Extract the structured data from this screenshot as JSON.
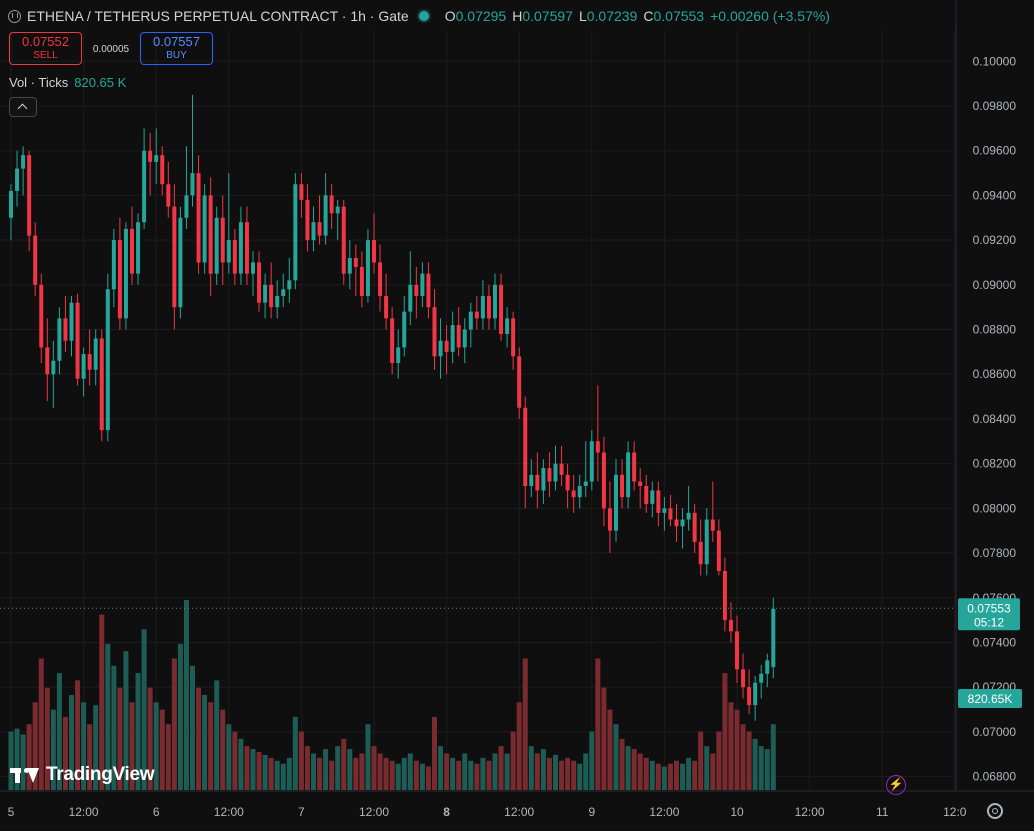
{
  "header": {
    "symbol": "ETHENA / TETHERUS PERPETUAL CONTRACT · 1h · Gate",
    "o_label": "O",
    "o_value": "0.07295",
    "h_label": "H",
    "h_value": "0.07597",
    "l_label": "L",
    "l_value": "0.07239",
    "c_label": "C",
    "c_value": "0.07553",
    "change": "+0.00260 (+3.57%)"
  },
  "trade": {
    "sell_price": "0.07552",
    "sell_label": "SELL",
    "spread": "0.00005",
    "buy_price": "0.07557",
    "buy_label": "BUY"
  },
  "volume": {
    "label": "Vol · Ticks",
    "value": "820.65 K"
  },
  "branding": {
    "name": "TradingView"
  },
  "colors": {
    "up": "#26a69a",
    "down": "#f23645",
    "up_vol": "#1e5c56",
    "down_vol": "#7a2b30",
    "bg": "#0f0f0f"
  },
  "icons": [
    "symbol-logo-icon",
    "collapse-chevron-icon",
    "lightning-icon",
    "settings-gear-icon"
  ],
  "chart_data": {
    "type": "candlestick",
    "interval": "1h",
    "y_ticks": [
      "0.10000",
      "0.09800",
      "0.09600",
      "0.09400",
      "0.09200",
      "0.09000",
      "0.08800",
      "0.08600",
      "0.08400",
      "0.08200",
      "0.08000",
      "0.07800",
      "0.07600",
      "0.07400",
      "0.07200",
      "0.07000",
      "0.06800"
    ],
    "ylim": [
      0.0674,
      0.1014
    ],
    "x_ticks": [
      {
        "label": "5",
        "bar": 0
      },
      {
        "label": "12:00",
        "bar": 12
      },
      {
        "label": "6",
        "bar": 24
      },
      {
        "label": "12:00",
        "bar": 36
      },
      {
        "label": "7",
        "bar": 48
      },
      {
        "label": "12:00",
        "bar": 60
      },
      {
        "label": "8",
        "bar": 72
      },
      {
        "label": "12:00",
        "bar": 84
      },
      {
        "label": "9",
        "bar": 96
      },
      {
        "label": "12:00",
        "bar": 108
      },
      {
        "label": "10",
        "bar": 120
      },
      {
        "label": "12:00",
        "bar": 132
      },
      {
        "label": "11",
        "bar": 144
      },
      {
        "label": "12:0",
        "bar": 156
      }
    ],
    "last_price": "0.07553",
    "last_price_value": 0.07553,
    "countdown": "05:12",
    "volume_label": "820.65K",
    "candles": [
      [
        0.093,
        0.0945,
        0.092,
        0.0942,
        40
      ],
      [
        0.0942,
        0.096,
        0.0935,
        0.0952,
        42
      ],
      [
        0.0952,
        0.0962,
        0.094,
        0.0958,
        38
      ],
      [
        0.0958,
        0.096,
        0.0915,
        0.0922,
        45
      ],
      [
        0.0922,
        0.0928,
        0.0895,
        0.09,
        60
      ],
      [
        0.09,
        0.0905,
        0.0865,
        0.0872,
        90
      ],
      [
        0.0872,
        0.0885,
        0.0848,
        0.086,
        70
      ],
      [
        0.086,
        0.0875,
        0.0845,
        0.0866,
        55
      ],
      [
        0.0866,
        0.089,
        0.086,
        0.0885,
        80
      ],
      [
        0.0885,
        0.0895,
        0.087,
        0.0875,
        50
      ],
      [
        0.0875,
        0.0895,
        0.0868,
        0.0892,
        65
      ],
      [
        0.0892,
        0.0896,
        0.0855,
        0.0858,
        75
      ],
      [
        0.0858,
        0.0872,
        0.085,
        0.0869,
        60
      ],
      [
        0.0869,
        0.088,
        0.0855,
        0.0862,
        45
      ],
      [
        0.0862,
        0.088,
        0.0855,
        0.0876,
        58
      ],
      [
        0.0876,
        0.088,
        0.083,
        0.0835,
        120
      ],
      [
        0.0835,
        0.0905,
        0.083,
        0.0898,
        100
      ],
      [
        0.0898,
        0.0925,
        0.089,
        0.092,
        85
      ],
      [
        0.092,
        0.093,
        0.088,
        0.0885,
        70
      ],
      [
        0.0885,
        0.0928,
        0.088,
        0.0925,
        95
      ],
      [
        0.0925,
        0.0935,
        0.09,
        0.0905,
        60
      ],
      [
        0.0905,
        0.0932,
        0.09,
        0.0928,
        80
      ],
      [
        0.0928,
        0.097,
        0.0925,
        0.096,
        110
      ],
      [
        0.096,
        0.0968,
        0.094,
        0.0955,
        70
      ],
      [
        0.0955,
        0.097,
        0.0945,
        0.0958,
        60
      ],
      [
        0.0958,
        0.0962,
        0.094,
        0.0945,
        55
      ],
      [
        0.0945,
        0.0955,
        0.093,
        0.0935,
        45
      ],
      [
        0.0935,
        0.0945,
        0.088,
        0.089,
        90
      ],
      [
        0.089,
        0.0935,
        0.0885,
        0.093,
        100
      ],
      [
        0.093,
        0.0962,
        0.0925,
        0.094,
        130
      ],
      [
        0.094,
        0.0985,
        0.0935,
        0.095,
        85
      ],
      [
        0.095,
        0.0958,
        0.0905,
        0.091,
        70
      ],
      [
        0.091,
        0.0945,
        0.0905,
        0.094,
        65
      ],
      [
        0.094,
        0.0948,
        0.0895,
        0.0905,
        60
      ],
      [
        0.0905,
        0.0935,
        0.09,
        0.093,
        75
      ],
      [
        0.093,
        0.094,
        0.09,
        0.091,
        55
      ],
      [
        0.091,
        0.095,
        0.0905,
        0.092,
        45
      ],
      [
        0.092,
        0.0925,
        0.09,
        0.0905,
        40
      ],
      [
        0.0905,
        0.0935,
        0.09,
        0.0928,
        35
      ],
      [
        0.0928,
        0.0935,
        0.09,
        0.0905,
        30
      ],
      [
        0.0905,
        0.0915,
        0.0895,
        0.091,
        28
      ],
      [
        0.091,
        0.0915,
        0.0888,
        0.0892,
        26
      ],
      [
        0.0892,
        0.0905,
        0.0885,
        0.09,
        24
      ],
      [
        0.09,
        0.091,
        0.0885,
        0.089,
        22
      ],
      [
        0.089,
        0.0902,
        0.0885,
        0.0895,
        20
      ],
      [
        0.0895,
        0.0905,
        0.089,
        0.0898,
        18
      ],
      [
        0.0898,
        0.0912,
        0.0892,
        0.0902,
        22
      ],
      [
        0.0902,
        0.095,
        0.0898,
        0.0945,
        50
      ],
      [
        0.0945,
        0.095,
        0.093,
        0.0938,
        40
      ],
      [
        0.0938,
        0.0945,
        0.0915,
        0.092,
        30
      ],
      [
        0.092,
        0.0935,
        0.0915,
        0.0928,
        25
      ],
      [
        0.0928,
        0.094,
        0.0918,
        0.0922,
        22
      ],
      [
        0.0922,
        0.095,
        0.0918,
        0.094,
        28
      ],
      [
        0.094,
        0.0945,
        0.0925,
        0.0932,
        20
      ],
      [
        0.0932,
        0.0938,
        0.092,
        0.0935,
        30
      ],
      [
        0.0935,
        0.0938,
        0.09,
        0.0905,
        35
      ],
      [
        0.0905,
        0.092,
        0.0898,
        0.0912,
        28
      ],
      [
        0.0912,
        0.0918,
        0.0895,
        0.0908,
        22
      ],
      [
        0.0908,
        0.0915,
        0.089,
        0.0895,
        25
      ],
      [
        0.0895,
        0.0925,
        0.0892,
        0.092,
        45
      ],
      [
        0.092,
        0.0932,
        0.0905,
        0.091,
        30
      ],
      [
        0.091,
        0.0918,
        0.0888,
        0.0895,
        25
      ],
      [
        0.0895,
        0.0905,
        0.088,
        0.0885,
        22
      ],
      [
        0.0885,
        0.089,
        0.086,
        0.0865,
        20
      ],
      [
        0.0865,
        0.088,
        0.0858,
        0.0872,
        18
      ],
      [
        0.0872,
        0.0895,
        0.0868,
        0.0888,
        22
      ],
      [
        0.0888,
        0.0915,
        0.0882,
        0.09,
        25
      ],
      [
        0.09,
        0.0908,
        0.0885,
        0.0895,
        20
      ],
      [
        0.0895,
        0.091,
        0.089,
        0.0905,
        18
      ],
      [
        0.0905,
        0.091,
        0.0885,
        0.089,
        16
      ],
      [
        0.089,
        0.0898,
        0.0862,
        0.0868,
        50
      ],
      [
        0.0868,
        0.0885,
        0.0858,
        0.0875,
        30
      ],
      [
        0.0875,
        0.0882,
        0.086,
        0.087,
        25
      ],
      [
        0.087,
        0.0888,
        0.0865,
        0.0882,
        22
      ],
      [
        0.0882,
        0.089,
        0.0868,
        0.0872,
        20
      ],
      [
        0.0872,
        0.0885,
        0.0865,
        0.088,
        25
      ],
      [
        0.088,
        0.0892,
        0.0872,
        0.0888,
        20
      ],
      [
        0.0888,
        0.0895,
        0.088,
        0.0885,
        18
      ],
      [
        0.0885,
        0.0902,
        0.088,
        0.0895,
        22
      ],
      [
        0.0895,
        0.09,
        0.088,
        0.0885,
        20
      ],
      [
        0.0885,
        0.0905,
        0.088,
        0.09,
        25
      ],
      [
        0.09,
        0.0905,
        0.0875,
        0.0878,
        30
      ],
      [
        0.0878,
        0.089,
        0.0872,
        0.0885,
        25
      ],
      [
        0.0885,
        0.0888,
        0.0862,
        0.0868,
        40
      ],
      [
        0.0868,
        0.0872,
        0.084,
        0.0845,
        60
      ],
      [
        0.0845,
        0.085,
        0.08,
        0.081,
        90
      ],
      [
        0.081,
        0.0822,
        0.0805,
        0.0815,
        30
      ],
      [
        0.0815,
        0.0825,
        0.08,
        0.0808,
        25
      ],
      [
        0.0808,
        0.0822,
        0.0802,
        0.0818,
        28
      ],
      [
        0.0818,
        0.0825,
        0.0805,
        0.0812,
        22
      ],
      [
        0.0812,
        0.0828,
        0.0808,
        0.082,
        24
      ],
      [
        0.082,
        0.0828,
        0.081,
        0.0815,
        20
      ],
      [
        0.0815,
        0.082,
        0.08,
        0.0808,
        22
      ],
      [
        0.0808,
        0.0815,
        0.0798,
        0.0805,
        20
      ],
      [
        0.0805,
        0.0815,
        0.08,
        0.081,
        18
      ],
      [
        0.081,
        0.083,
        0.0805,
        0.0812,
        25
      ],
      [
        0.0812,
        0.0835,
        0.0808,
        0.083,
        40
      ],
      [
        0.083,
        0.0855,
        0.0812,
        0.0825,
        90
      ],
      [
        0.0825,
        0.0832,
        0.0792,
        0.08,
        70
      ],
      [
        0.08,
        0.0812,
        0.078,
        0.079,
        55
      ],
      [
        0.079,
        0.0822,
        0.0785,
        0.0815,
        45
      ],
      [
        0.0815,
        0.0822,
        0.08,
        0.0805,
        35
      ],
      [
        0.0805,
        0.083,
        0.08,
        0.0825,
        30
      ],
      [
        0.0825,
        0.083,
        0.0808,
        0.0812,
        28
      ],
      [
        0.0812,
        0.0818,
        0.08,
        0.081,
        25
      ],
      [
        0.081,
        0.0815,
        0.0798,
        0.0802,
        22
      ],
      [
        0.0802,
        0.0812,
        0.0796,
        0.0808,
        20
      ],
      [
        0.0808,
        0.0812,
        0.0792,
        0.0798,
        18
      ],
      [
        0.0798,
        0.0805,
        0.079,
        0.08,
        16
      ],
      [
        0.08,
        0.0806,
        0.0792,
        0.0795,
        18
      ],
      [
        0.0795,
        0.0802,
        0.0785,
        0.0792,
        20
      ],
      [
        0.0792,
        0.08,
        0.0782,
        0.0795,
        18
      ],
      [
        0.0795,
        0.081,
        0.079,
        0.0798,
        22
      ],
      [
        0.0798,
        0.0802,
        0.078,
        0.0785,
        20
      ],
      [
        0.0785,
        0.0795,
        0.077,
        0.0775,
        40
      ],
      [
        0.0775,
        0.08,
        0.077,
        0.0795,
        30
      ],
      [
        0.0795,
        0.0812,
        0.0785,
        0.079,
        25
      ],
      [
        0.079,
        0.0795,
        0.077,
        0.0772,
        40
      ],
      [
        0.0772,
        0.0778,
        0.0745,
        0.075,
        80
      ],
      [
        0.075,
        0.0758,
        0.074,
        0.0745,
        60
      ],
      [
        0.0745,
        0.0752,
        0.0722,
        0.0728,
        55
      ],
      [
        0.0728,
        0.0735,
        0.0715,
        0.072,
        45
      ],
      [
        0.072,
        0.0728,
        0.0708,
        0.0712,
        40
      ],
      [
        0.0712,
        0.0725,
        0.0705,
        0.0722,
        35
      ],
      [
        0.0722,
        0.073,
        0.0715,
        0.0726,
        30
      ],
      [
        0.0726,
        0.0735,
        0.072,
        0.0732,
        28
      ],
      [
        0.0729,
        0.076,
        0.0724,
        0.0755,
        45
      ]
    ]
  }
}
